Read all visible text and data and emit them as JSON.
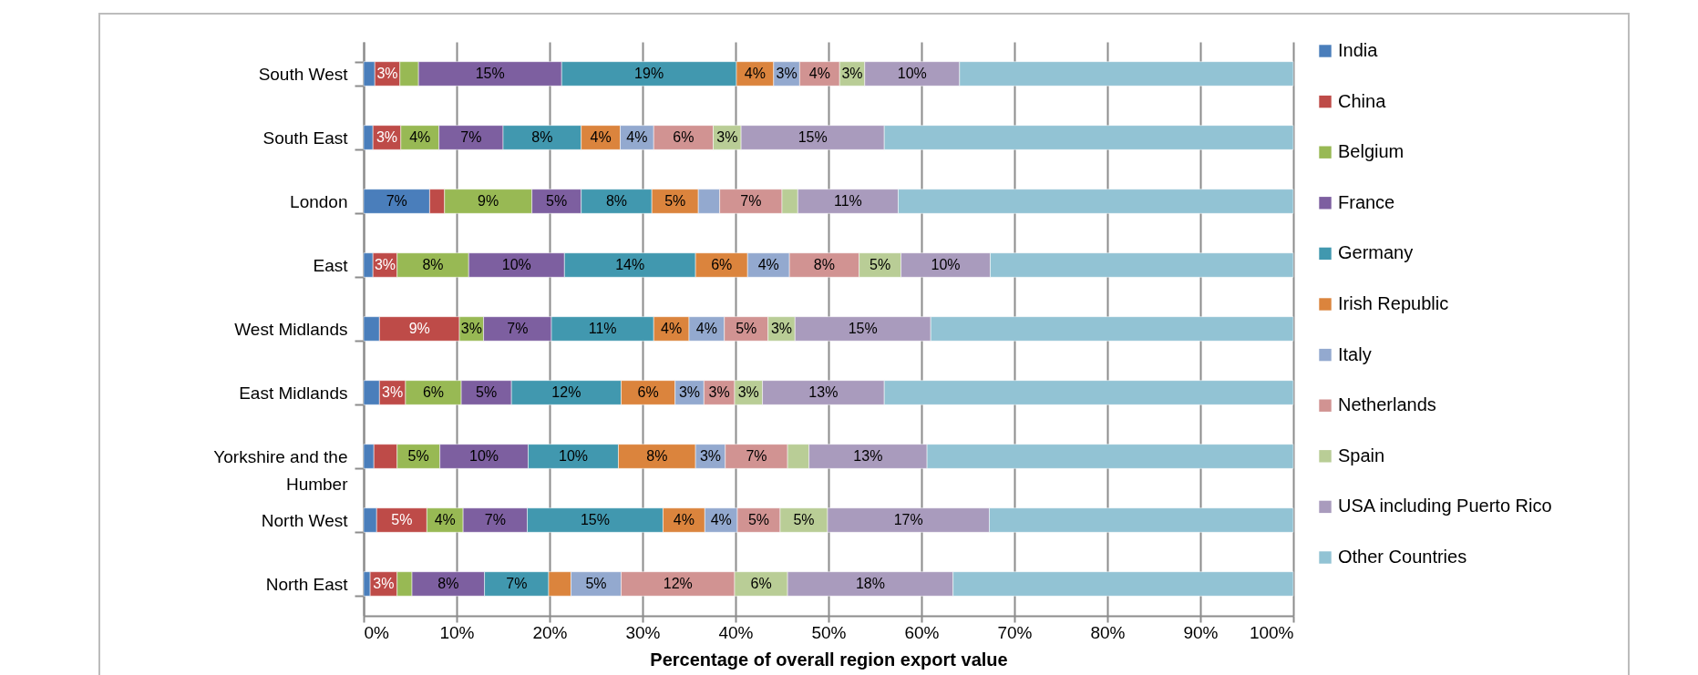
{
  "chart_data": {
    "type": "bar",
    "orientation": "horizontal",
    "stacked": true,
    "xlabel": "Percentage of overall region export value",
    "categories": [
      "South West",
      "South East",
      "London",
      "East",
      "West Midlands",
      "East Midlands",
      "Yorkshire and the Humber",
      "North West",
      "North East"
    ],
    "xlim": [
      0,
      100
    ],
    "xticks": [
      {
        "value": 0,
        "label": "0%"
      },
      {
        "value": 10,
        "label": "10%"
      },
      {
        "value": 20,
        "label": "20%"
      },
      {
        "value": 30,
        "label": "30%"
      },
      {
        "value": 40,
        "label": "40%"
      },
      {
        "value": 50,
        "label": "50%"
      },
      {
        "value": 60,
        "label": "60%"
      },
      {
        "value": 70,
        "label": "70%"
      },
      {
        "value": 80,
        "label": "80%"
      },
      {
        "value": 90,
        "label": "90%"
      },
      {
        "value": 100,
        "label": "100%"
      }
    ],
    "grid": "x",
    "legend": "right",
    "series": [
      {
        "name": "India",
        "color": "#4a7ebb",
        "values": [
          1.2,
          1.0,
          7.1,
          1.0,
          1.7,
          1.7,
          1.1,
          1.4,
          0.7
        ],
        "value_labels": [
          null,
          null,
          "7%",
          null,
          null,
          null,
          null,
          null,
          null
        ]
      },
      {
        "name": "China",
        "color": "#be4b48",
        "values": [
          2.7,
          3.0,
          1.6,
          2.6,
          8.6,
          2.8,
          2.5,
          5.4,
          2.9
        ],
        "value_labels": [
          "3%",
          "3%",
          null,
          "3%",
          "9%",
          "3%",
          null,
          "5%",
          "3%"
        ]
      },
      {
        "name": "Belgium",
        "color": "#98b954",
        "values": [
          2.0,
          4.1,
          9.4,
          7.7,
          2.6,
          6.0,
          4.6,
          3.9,
          1.6
        ],
        "value_labels": [
          null,
          "4%",
          "9%",
          "8%",
          "3%",
          "6%",
          "5%",
          "4%",
          null
        ]
      },
      {
        "name": "France",
        "color": "#7d5fa0",
        "values": [
          15.4,
          6.9,
          5.3,
          10.3,
          7.3,
          5.4,
          9.5,
          6.9,
          7.8
        ],
        "value_labels": [
          "15%",
          "7%",
          "5%",
          "10%",
          "7%",
          "5%",
          "10%",
          "7%",
          "8%"
        ]
      },
      {
        "name": "Germany",
        "color": "#4198af",
        "values": [
          18.8,
          8.4,
          7.6,
          14.1,
          11.0,
          11.8,
          9.7,
          14.6,
          6.9
        ],
        "value_labels": [
          "19%",
          "8%",
          "8%",
          "14%",
          "11%",
          "12%",
          "10%",
          "15%",
          "7%"
        ]
      },
      {
        "name": "Irish Republic",
        "color": "#db843d",
        "values": [
          4.0,
          4.2,
          5.0,
          5.6,
          3.8,
          5.8,
          8.3,
          4.5,
          2.4
        ],
        "value_labels": [
          "4%",
          "4%",
          "5%",
          "6%",
          "4%",
          "6%",
          "8%",
          "4%",
          null
        ]
      },
      {
        "name": "Italy",
        "color": "#93a9cf",
        "values": [
          2.8,
          3.6,
          2.3,
          4.5,
          3.8,
          3.1,
          3.2,
          3.5,
          5.4
        ],
        "value_labels": [
          "3%",
          "4%",
          null,
          "4%",
          "4%",
          "3%",
          "3%",
          "4%",
          "5%"
        ]
      },
      {
        "name": "Netherlands",
        "color": "#d19392",
        "values": [
          4.3,
          6.4,
          6.7,
          7.5,
          4.7,
          3.3,
          6.7,
          4.6,
          12.2
        ],
        "value_labels": [
          "4%",
          "6%",
          "7%",
          "8%",
          "5%",
          "3%",
          "7%",
          "5%",
          "12%"
        ]
      },
      {
        "name": "Spain",
        "color": "#b9cd96",
        "values": [
          2.7,
          3.0,
          1.7,
          4.5,
          2.9,
          3.0,
          2.3,
          5.1,
          5.7
        ],
        "value_labels": [
          "3%",
          "3%",
          null,
          "5%",
          "3%",
          "3%",
          null,
          "5%",
          "6%"
        ]
      },
      {
        "name": "USA including Puerto Rico",
        "color": "#a99bbd",
        "values": [
          10.2,
          15.4,
          10.8,
          9.6,
          14.6,
          13.1,
          12.7,
          17.4,
          17.8
        ],
        "value_labels": [
          "10%",
          "15%",
          "11%",
          "10%",
          "15%",
          "13%",
          "13%",
          "17%",
          "18%"
        ]
      },
      {
        "name": "Other Countries",
        "color": "#92c3d4",
        "values": [
          35.9,
          44.0,
          42.5,
          32.6,
          39.0,
          44.0,
          39.4,
          32.7,
          36.6
        ],
        "value_labels": [
          null,
          null,
          null,
          null,
          null,
          null,
          null,
          null,
          null
        ]
      }
    ]
  }
}
